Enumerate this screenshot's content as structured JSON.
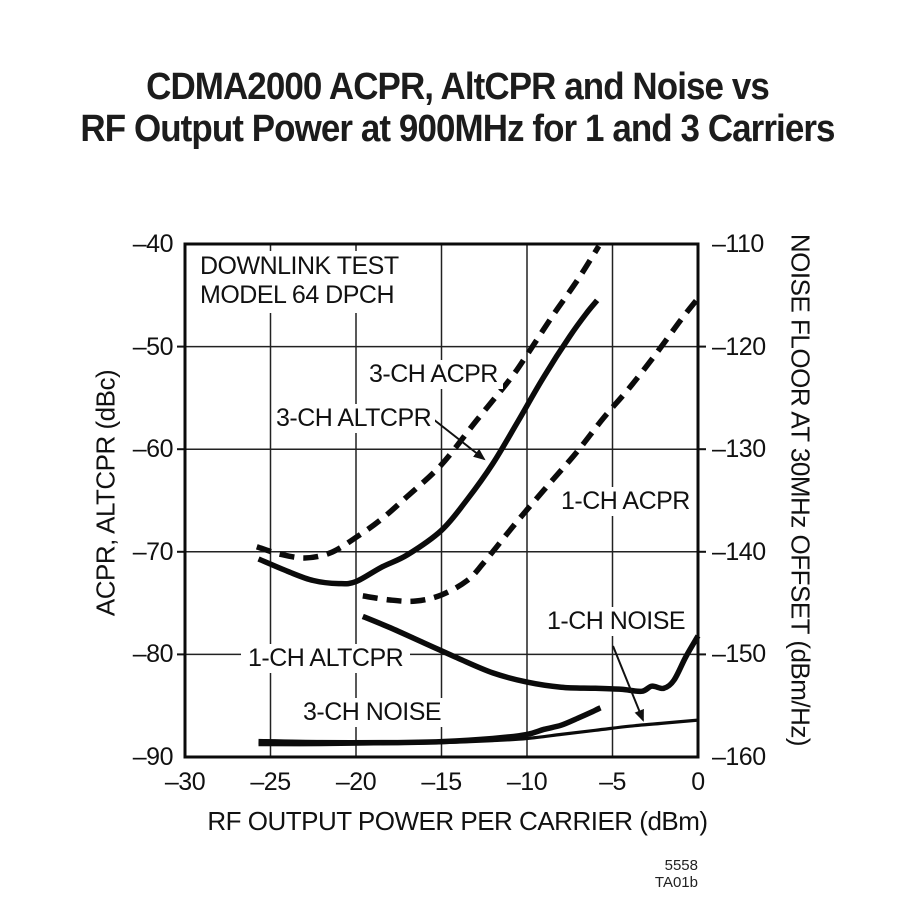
{
  "page": {
    "background": "#ffffff",
    "footer_code": "5558 TA01b",
    "ink_color": "#111111"
  },
  "title": {
    "line1": "CDMA2000 ACPR, AltCPR and Noise vs",
    "line2": "RF Output Power at 900MHz for 1 and 3 Carriers"
  },
  "chart_data": {
    "type": "line",
    "title": "CDMA2000 ACPR, AltCPR and Noise vs RF Output Power at 900MHz for 1 and 3 Carriers",
    "grid": true,
    "legend_position": "in-plot curve labels",
    "note": {
      "line1": "DOWNLINK TEST",
      "line2": "MODEL 64 DPCH"
    },
    "x_axis": {
      "label": "RF OUTPUT POWER PER CARRIER (dBm)",
      "range": [
        -30,
        0
      ],
      "ticks": [
        -30,
        -25,
        -20,
        -15,
        -10,
        -5,
        0
      ],
      "tick_labels": [
        "–30",
        "–25",
        "–20",
        "–15",
        "–10",
        "–5",
        "0"
      ],
      "gridlines": [
        -25,
        -20,
        -15,
        -10,
        -5
      ]
    },
    "y_axis_left": {
      "label": "ACPR, ALTCPR (dBc)",
      "range": [
        -40,
        -90
      ],
      "ticks": [
        -40,
        -50,
        -60,
        -70,
        -80,
        -90
      ],
      "tick_labels": [
        "–40",
        "–50",
        "–60",
        "–70",
        "–80",
        "–90"
      ],
      "gridlines": [
        -50,
        -60,
        -70,
        -80
      ]
    },
    "y_axis_right": {
      "label": "NOISE FLOOR AT 30MHz OFFSET (dBm/Hz)",
      "range": [
        -110,
        -160
      ],
      "ticks": [
        -110,
        -120,
        -130,
        -140,
        -150,
        -160
      ],
      "tick_labels": [
        "–110",
        "–120",
        "–130",
        "–140",
        "–150",
        "–160"
      ],
      "gridlines": [
        -120,
        -130,
        -140,
        -150
      ]
    },
    "curve_labels": {
      "ch3_acpr": "3-CH ACPR",
      "ch3_altcpr": "3-CH ALTCPR",
      "ch1_acpr": "1-CH ACPR",
      "ch1_altcpr": "1-CH ALTCPR",
      "ch1_noise": "1-CH NOISE",
      "ch3_noise": "3-CH NOISE"
    },
    "series": [
      {
        "name": "3-CH ACPR",
        "axis": "left",
        "line_style": "dashed",
        "thickness": "thick",
        "points": [
          [
            -25.8,
            -69.5
          ],
          [
            -24.5,
            -70.2
          ],
          [
            -23,
            -70.6
          ],
          [
            -21.5,
            -70.1
          ],
          [
            -20,
            -68.6
          ],
          [
            -18.5,
            -66.8
          ],
          [
            -17,
            -64.6
          ],
          [
            -15,
            -61.5
          ],
          [
            -13,
            -57.3
          ],
          [
            -11,
            -53.2
          ],
          [
            -10,
            -50.8
          ],
          [
            -8.5,
            -47.0
          ],
          [
            -7,
            -43.4
          ],
          [
            -5.8,
            -40.2
          ]
        ]
      },
      {
        "name": "3-CH ALTCPR",
        "axis": "left",
        "line_style": "solid",
        "thickness": "thick",
        "points": [
          [
            -25.7,
            -70.7
          ],
          [
            -24,
            -71.9
          ],
          [
            -22.5,
            -72.8
          ],
          [
            -21,
            -73.1
          ],
          [
            -20,
            -72.9
          ],
          [
            -18.5,
            -71.5
          ],
          [
            -17,
            -70.3
          ],
          [
            -15,
            -67.9
          ],
          [
            -13.5,
            -64.9
          ],
          [
            -12,
            -61.4
          ],
          [
            -10.5,
            -57.2
          ],
          [
            -9,
            -52.9
          ],
          [
            -7.5,
            -49.0
          ],
          [
            -6.5,
            -46.7
          ],
          [
            -5.9,
            -45.5
          ]
        ]
      },
      {
        "name": "1-CH ACPR",
        "axis": "left",
        "line_style": "dashed",
        "thickness": "thick",
        "points": [
          [
            -19.6,
            -74.3
          ],
          [
            -18,
            -74.7
          ],
          [
            -16.5,
            -74.8
          ],
          [
            -15,
            -74.2
          ],
          [
            -13.5,
            -72.8
          ],
          [
            -12.5,
            -71.0
          ],
          [
            -11,
            -67.9
          ],
          [
            -10,
            -65.9
          ],
          [
            -8.5,
            -63.0
          ],
          [
            -7,
            -60.1
          ],
          [
            -5.5,
            -56.9
          ],
          [
            -4,
            -54.0
          ],
          [
            -2.5,
            -50.8
          ],
          [
            -1,
            -47.4
          ],
          [
            0,
            -45.3
          ]
        ]
      },
      {
        "name": "1-CH ALTCPR",
        "axis": "left",
        "line_style": "solid",
        "thickness": "thick",
        "points": [
          [
            -19.6,
            -76.3
          ],
          [
            -18,
            -77.4
          ],
          [
            -16,
            -78.9
          ],
          [
            -14,
            -80.4
          ],
          [
            -12,
            -81.8
          ],
          [
            -10,
            -82.7
          ],
          [
            -8,
            -83.2
          ],
          [
            -6,
            -83.3
          ],
          [
            -4.5,
            -83.4
          ],
          [
            -3.3,
            -83.6
          ],
          [
            -2.7,
            -83.1
          ],
          [
            -2,
            -83.3
          ],
          [
            -1.4,
            -82.5
          ],
          [
            -0.7,
            -80.2
          ],
          [
            0,
            -78.2
          ]
        ]
      },
      {
        "name": "1-CH NOISE",
        "axis": "right",
        "line_style": "solid",
        "thickness": "thin",
        "points": [
          [
            -25.7,
            -158.8
          ],
          [
            -22,
            -158.8
          ],
          [
            -18,
            -158.7
          ],
          [
            -15,
            -158.6
          ],
          [
            -12,
            -158.4
          ],
          [
            -10,
            -158.2
          ],
          [
            -8,
            -157.8
          ],
          [
            -6,
            -157.4
          ],
          [
            -4,
            -157.0
          ],
          [
            -2,
            -156.7
          ],
          [
            0,
            -156.4
          ]
        ]
      },
      {
        "name": "3-CH NOISE",
        "axis": "right",
        "line_style": "solid",
        "thickness": "thick",
        "points": [
          [
            -25.7,
            -158.5
          ],
          [
            -22,
            -158.6
          ],
          [
            -18,
            -158.6
          ],
          [
            -15,
            -158.5
          ],
          [
            -12,
            -158.2
          ],
          [
            -10,
            -157.8
          ],
          [
            -9,
            -157.3
          ],
          [
            -8,
            -156.9
          ],
          [
            -7,
            -156.2
          ],
          [
            -6.2,
            -155.6
          ],
          [
            -5.7,
            -155.2
          ]
        ]
      }
    ]
  }
}
